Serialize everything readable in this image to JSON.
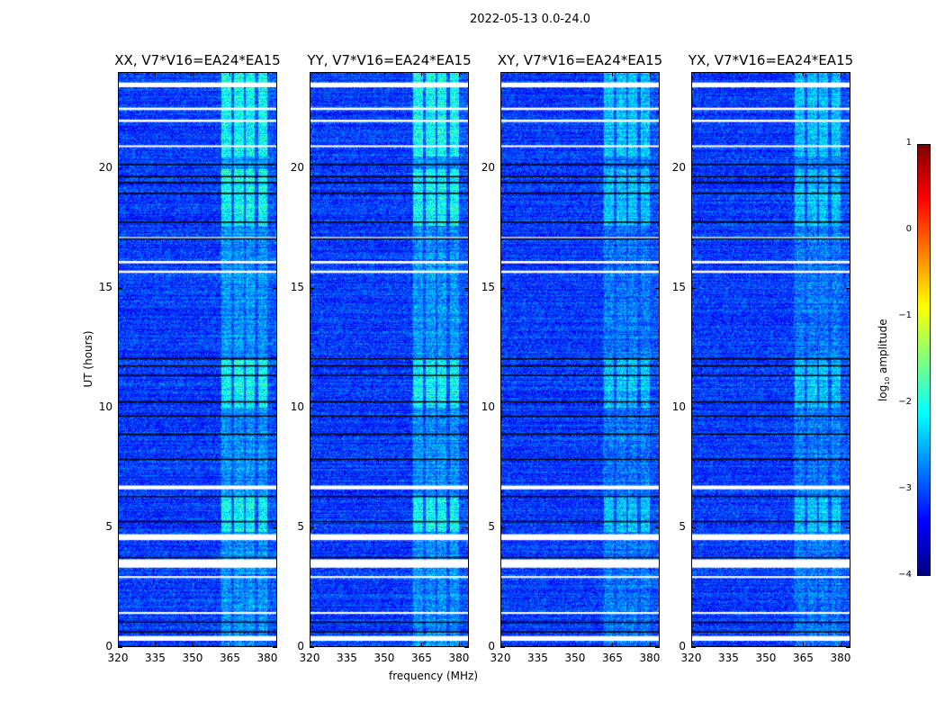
{
  "chart_data": {
    "type": "heatmap",
    "title": "2022-05-13 0.0-24.0",
    "xlabel": "frequency (MHz)",
    "ylabel": "UT (hours)",
    "xlim": [
      320,
      384
    ],
    "ylim": [
      0,
      24
    ],
    "xticks": [
      320,
      335,
      350,
      365,
      380
    ],
    "yticks": [
      0,
      5,
      10,
      15,
      20
    ],
    "panels": [
      {
        "title": "XX, V7*V16=EA24*EA15"
      },
      {
        "title": "YY, V7*V16=EA24*EA15"
      },
      {
        "title": "XY, V7*V16=EA24*EA15"
      },
      {
        "title": "YX, V7*V16=EA24*EA15"
      }
    ],
    "colorbar": {
      "label_main": "log",
      "label_sub": "10",
      "label_rest": " amplitude",
      "colormap": "jet",
      "range": [
        -4,
        1
      ],
      "ticks": [
        1,
        0,
        -1,
        -2,
        -3,
        -4
      ],
      "tick_labels": [
        "1",
        "0",
        "−1",
        "−2",
        "−3",
        "−4"
      ]
    },
    "background_log_amplitude": -3.1,
    "flagged_ut_ranges": [
      [
        23.4,
        23.6
      ],
      [
        22.45,
        22.55
      ],
      [
        21.95,
        22.05
      ],
      [
        20.9,
        20.98
      ],
      [
        17.05,
        17.15
      ],
      [
        16.05,
        16.15
      ],
      [
        15.65,
        15.75
      ],
      [
        6.62,
        6.78
      ],
      [
        4.5,
        4.75
      ],
      [
        3.35,
        3.7
      ],
      [
        2.92,
        3.0
      ],
      [
        1.42,
        1.5
      ],
      [
        0.3,
        0.5
      ]
    ],
    "dropout_ut_times": [
      20.2,
      19.7,
      19.45,
      19.0,
      17.8,
      17.1,
      12.1,
      11.8,
      11.4,
      10.3,
      9.7,
      8.95,
      7.9,
      6.35,
      5.3,
      3.8,
      1.1,
      0.7
    ],
    "rfi_channel_ranges_mhz": [
      [
        361.5,
        365.5
      ],
      [
        366.5,
        370.5
      ],
      [
        371.5,
        375
      ],
      [
        376.5,
        380
      ]
    ],
    "rfi_strong_ut_ranges": [
      [
        4.8,
        6.3
      ],
      [
        10.0,
        12.0
      ],
      [
        17.6,
        20.0
      ],
      [
        20.5,
        24.0
      ]
    ]
  }
}
